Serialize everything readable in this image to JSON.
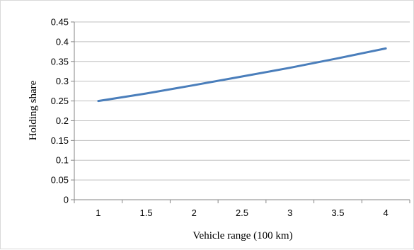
{
  "chart_data": {
    "type": "line",
    "xlabel": "Vehicle range (100 km)",
    "ylabel": "Holding share",
    "x_categories": [
      "1",
      "1.5",
      "2",
      "2.5",
      "3",
      "3.5",
      "4"
    ],
    "y_ticks": [
      "0",
      "0.05",
      "0.1",
      "0.15",
      "0.2",
      "0.25",
      "0.3",
      "0.35",
      "0.4",
      "0.45"
    ],
    "ylim": [
      0,
      0.45
    ],
    "grid": "horizontal",
    "legend": "none",
    "series": [
      {
        "color": "#4a7ebb",
        "x": [
          1,
          1.5,
          2,
          2.5,
          3,
          3.5,
          4
        ],
        "y": [
          0.25,
          0.269,
          0.29,
          0.312,
          0.334,
          0.358,
          0.383
        ]
      }
    ]
  }
}
